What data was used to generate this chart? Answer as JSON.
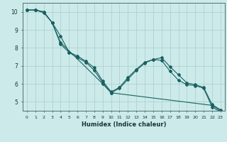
{
  "xlabel": "Humidex (Indice chaleur)",
  "bg_color": "#cceaea",
  "grid_color": "#aacccc",
  "line_color": "#1a6060",
  "xlim": [
    -0.5,
    23.5
  ],
  "ylim": [
    4.5,
    10.5
  ],
  "xticks": [
    0,
    1,
    2,
    3,
    4,
    5,
    6,
    7,
    8,
    9,
    10,
    11,
    12,
    13,
    14,
    15,
    16,
    17,
    18,
    19,
    20,
    21,
    22,
    23
  ],
  "yticks": [
    5,
    6,
    7,
    8,
    9,
    10
  ],
  "series1_x": [
    0,
    1,
    2,
    3,
    4,
    5,
    6,
    7,
    8,
    9,
    10,
    11,
    12,
    13,
    14,
    15,
    16,
    17,
    18,
    19,
    20,
    21,
    22,
    23
  ],
  "series1_y": [
    10.1,
    10.1,
    9.95,
    9.4,
    8.65,
    7.75,
    7.55,
    7.25,
    6.9,
    6.15,
    5.55,
    5.8,
    6.35,
    6.8,
    7.2,
    7.35,
    7.45,
    6.95,
    6.5,
    6.05,
    5.95,
    5.8,
    4.85,
    4.55
  ],
  "series2_x": [
    0,
    1,
    2,
    3,
    4,
    5,
    6,
    7,
    8,
    9,
    10,
    11,
    12,
    13,
    14,
    15,
    16,
    17,
    18,
    19,
    20,
    21,
    22,
    23
  ],
  "series2_y": [
    10.1,
    10.1,
    10.0,
    9.4,
    8.2,
    7.75,
    7.45,
    7.2,
    6.75,
    6.05,
    5.5,
    5.75,
    6.25,
    6.75,
    7.15,
    7.35,
    7.3,
    6.7,
    6.2,
    5.95,
    5.9,
    5.75,
    4.7,
    4.45
  ],
  "series3_x": [
    0,
    1,
    2,
    3,
    4,
    9,
    10,
    22,
    23
  ],
  "series3_y": [
    10.1,
    10.1,
    10.0,
    9.4,
    8.3,
    6.0,
    5.5,
    4.8,
    4.5
  ]
}
